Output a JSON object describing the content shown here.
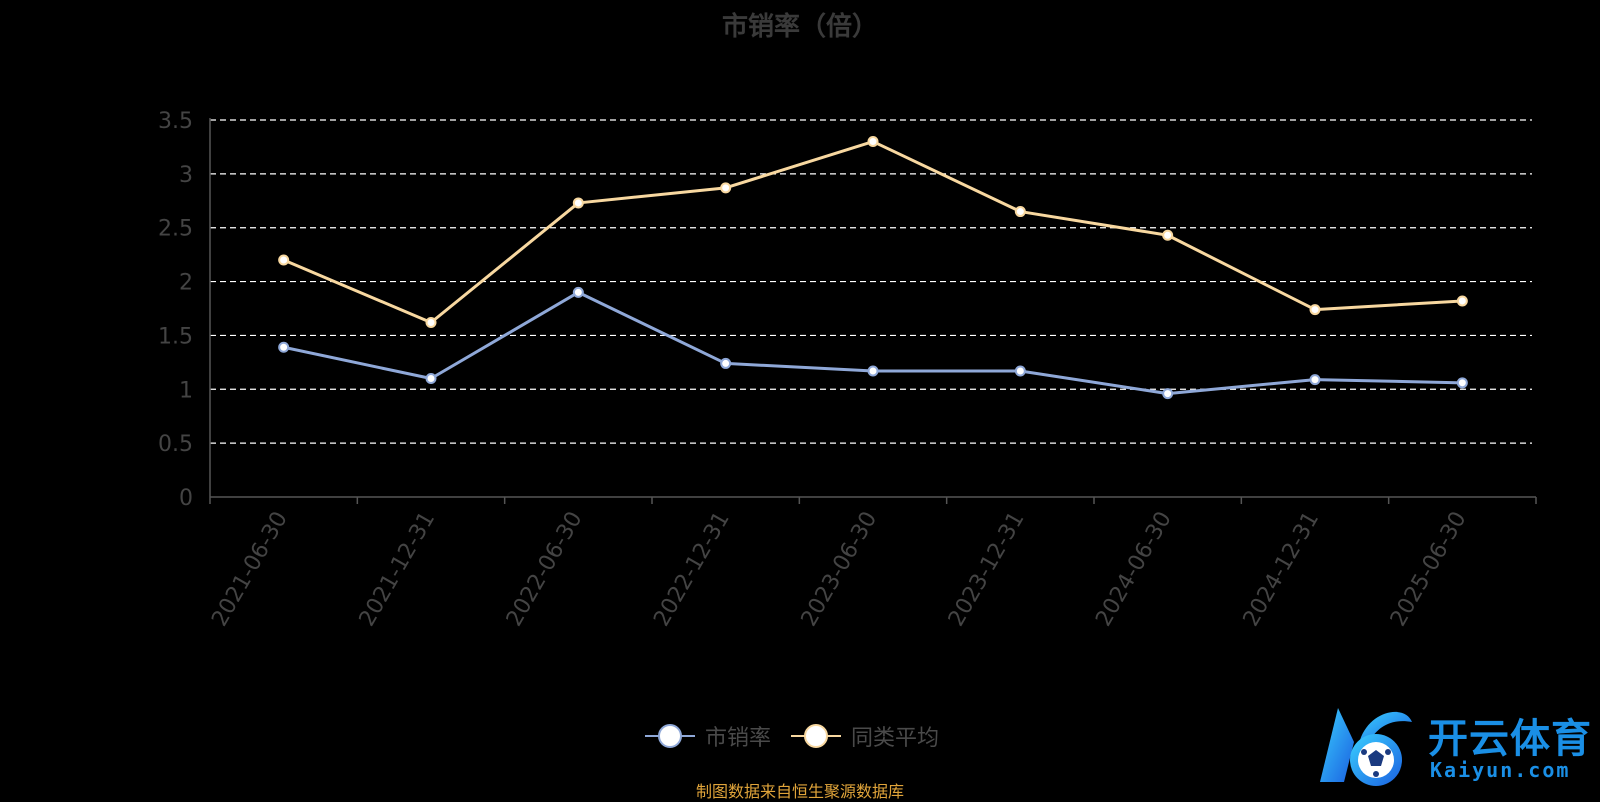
{
  "chart_data": {
    "type": "line",
    "title": "市销率（倍）",
    "categories": [
      "2021-06-30",
      "2021-12-31",
      "2022-06-30",
      "2022-12-31",
      "2023-06-30",
      "2023-12-31",
      "2024-06-30",
      "2024-12-31",
      "2025-06-30"
    ],
    "ylim": [
      0,
      3.5
    ],
    "yticks": [
      "0",
      "0.5",
      "1",
      "1.5",
      "2",
      "2.5",
      "3",
      "3.5"
    ],
    "grid": true,
    "legend_position": "bottom-center",
    "series": [
      {
        "name": "市销率",
        "color": "#8fa8d8",
        "values": [
          1.39,
          1.1,
          1.9,
          1.24,
          1.17,
          1.17,
          0.96,
          1.09,
          1.06
        ]
      },
      {
        "name": "同类平均",
        "color": "#f8d8a0",
        "values": [
          2.2,
          1.62,
          2.73,
          2.87,
          3.3,
          2.65,
          2.43,
          1.74,
          1.82
        ]
      }
    ]
  },
  "legend": {
    "items": [
      {
        "label": "市销率",
        "color": "#8fa8d8"
      },
      {
        "label": "同类平均",
        "color": "#f8d8a0"
      }
    ]
  },
  "source_note": "制图数据来自恒生聚源数据库",
  "watermark": {
    "cn": "开云体育",
    "en": "Kaiyun.com",
    "color": "#1a8fe6"
  }
}
